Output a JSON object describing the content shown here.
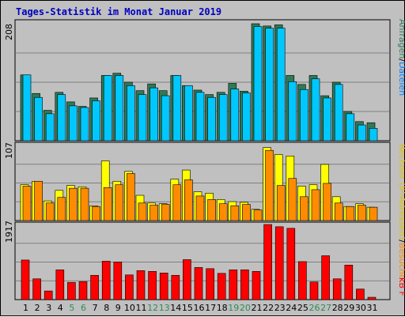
{
  "title": "Tages-Statistik im Monat Januar 2019",
  "colors": {
    "title": "#0000c0",
    "panel_bg": "#c0c0c0",
    "grid": "#808080",
    "label_weekday": "#000000",
    "label_weekend": "#2e8b57",
    "anfragen": "#2e7a55",
    "dateien": "#00c8ff",
    "rechner": "#ffff00",
    "besuche": "#ff8c00",
    "kbf": "#ff0000"
  },
  "side_labels": {
    "anfragen": "Anfragen",
    "dateien": "Dateien",
    "rechner": "Rechner (IP-Adressen)",
    "besuche": "Besuche",
    "kbf": "kB F"
  },
  "days": [
    "1",
    "2",
    "3",
    "4",
    "5",
    "6",
    "7",
    "8",
    "9",
    "10",
    "11",
    "12",
    "13",
    "14",
    "15",
    "16",
    "17",
    "18",
    "19",
    "20",
    "21",
    "22",
    "23",
    "24",
    "25",
    "26",
    "27",
    "28",
    "29",
    "30",
    "31"
  ],
  "weekend_days": [
    "5",
    "6",
    "12",
    "13",
    "19",
    "20",
    "26",
    "27"
  ],
  "chart_data": [
    {
      "type": "bar",
      "panel": "top",
      "y_max_label": "208",
      "y_max": 208,
      "categories": [
        "1",
        "2",
        "3",
        "4",
        "5",
        "6",
        "7",
        "8",
        "9",
        "10",
        "11",
        "12",
        "13",
        "14",
        "15",
        "16",
        "17",
        "18",
        "19",
        "20",
        "21",
        "22",
        "23",
        "24",
        "25",
        "26",
        "27",
        "28",
        "29",
        "30",
        "31"
      ],
      "series": [
        {
          "name": "Anfragen",
          "values": [
            117,
            84,
            54,
            86,
            69,
            61,
            76,
            116,
            120,
            104,
            89,
            101,
            89,
            116,
            98,
            90,
            82,
            86,
            102,
            88,
            208,
            204,
            206,
            116,
            100,
            116,
            80,
            104,
            52,
            34,
            32
          ]
        },
        {
          "name": "Dateien",
          "values": [
            117,
            77,
            48,
            82,
            62,
            59,
            71,
            116,
            116,
            98,
            82,
            94,
            80,
            116,
            98,
            86,
            77,
            82,
            92,
            85,
            203,
            200,
            200,
            105,
            91,
            110,
            76,
            100,
            48,
            28,
            22
          ]
        }
      ]
    },
    {
      "type": "bar",
      "panel": "middle",
      "y_max_label": "107",
      "y_max": 107,
      "categories": [
        "1",
        "2",
        "3",
        "4",
        "5",
        "6",
        "7",
        "8",
        "9",
        "10",
        "11",
        "12",
        "13",
        "14",
        "15",
        "16",
        "17",
        "18",
        "19",
        "20",
        "21",
        "22",
        "23",
        "24",
        "25",
        "26",
        "27",
        "28",
        "29",
        "30",
        "31"
      ],
      "series": [
        {
          "name": "Rechner (IP-Adressen)",
          "values": [
            51,
            56,
            28,
            43,
            50,
            48,
            21,
            85,
            56,
            70,
            36,
            25,
            24,
            59,
            72,
            41,
            39,
            30,
            27,
            26,
            16,
            104,
            94,
            92,
            49,
            51,
            80,
            34,
            20,
            24,
            19
          ]
        },
        {
          "name": "Besuche",
          "values": [
            49,
            56,
            25,
            33,
            46,
            46,
            20,
            47,
            51,
            67,
            25,
            22,
            23,
            51,
            58,
            35,
            30,
            24,
            21,
            23,
            15,
            100,
            50,
            60,
            34,
            44,
            53,
            25,
            20,
            22,
            19
          ]
        }
      ]
    },
    {
      "type": "bar",
      "panel": "bottom",
      "y_max_label": "1917",
      "y_max": 1917,
      "categories": [
        "1",
        "2",
        "3",
        "4",
        "5",
        "6",
        "7",
        "8",
        "9",
        "10",
        "11",
        "12",
        "13",
        "14",
        "15",
        "16",
        "17",
        "18",
        "19",
        "20",
        "21",
        "22",
        "23",
        "24",
        "25",
        "26",
        "27",
        "28",
        "29",
        "30",
        "31"
      ],
      "series": [
        {
          "name": "kB F",
          "values": [
            1010,
            530,
            220,
            760,
            440,
            460,
            620,
            980,
            960,
            630,
            740,
            720,
            680,
            620,
            1020,
            820,
            790,
            670,
            760,
            760,
            720,
            1917,
            1860,
            1820,
            970,
            450,
            1120,
            530,
            880,
            270,
            60
          ]
        }
      ]
    }
  ]
}
